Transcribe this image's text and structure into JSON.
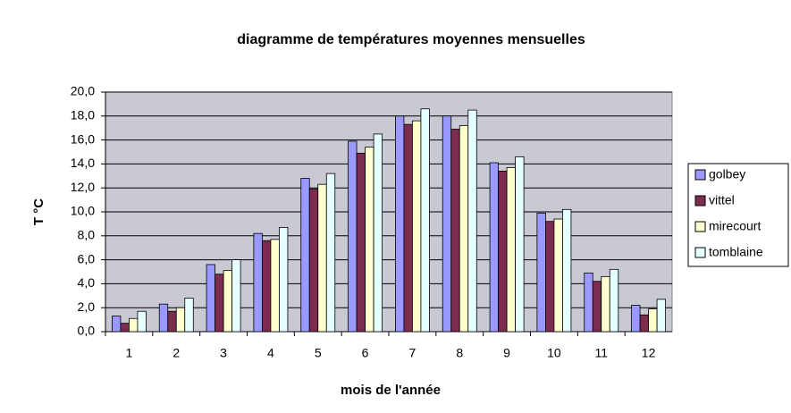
{
  "chart_data": {
    "type": "bar",
    "title": "diagramme de températures moyennes mensuelles",
    "x_label": "mois de l'année",
    "y_label": "T °C",
    "categories": [
      "1",
      "2",
      "3",
      "4",
      "5",
      "6",
      "7",
      "8",
      "9",
      "10",
      "11",
      "12"
    ],
    "series": [
      {
        "name": "golbey",
        "color": "#9999ff",
        "values": [
          1.3,
          2.3,
          5.6,
          8.2,
          12.8,
          15.9,
          18.0,
          18.0,
          14.1,
          9.9,
          4.9,
          2.2
        ]
      },
      {
        "name": "vittel",
        "color": "#7b2c4f",
        "values": [
          0.7,
          1.7,
          4.8,
          7.6,
          11.9,
          14.9,
          17.3,
          16.9,
          13.4,
          9.2,
          4.2,
          1.4
        ]
      },
      {
        "name": "mirecourt",
        "color": "#ffffd0",
        "values": [
          1.1,
          2.0,
          5.1,
          7.7,
          12.3,
          15.4,
          17.6,
          17.2,
          13.7,
          9.4,
          4.6,
          1.9
        ]
      },
      {
        "name": "tomblaine",
        "color": "#e6ffff",
        "values": [
          1.7,
          2.8,
          6.0,
          8.7,
          13.2,
          16.5,
          18.6,
          18.5,
          14.6,
          10.2,
          5.2,
          2.7
        ]
      }
    ],
    "ylim": [
      0,
      20
    ],
    "yticks": [
      {
        "value": 0,
        "label": "0,0"
      },
      {
        "value": 2,
        "label": "2,0"
      },
      {
        "value": 4,
        "label": "4,0"
      },
      {
        "value": 6,
        "label": "6,0"
      },
      {
        "value": 8,
        "label": "8,0"
      },
      {
        "value": 10,
        "label": "10,0"
      },
      {
        "value": 12,
        "label": "12,0"
      },
      {
        "value": 14,
        "label": "14,0"
      },
      {
        "value": 16,
        "label": "16,0"
      },
      {
        "value": 18,
        "label": "18,0"
      },
      {
        "value": 20,
        "label": "20,0"
      }
    ],
    "grid": true,
    "legend": "right"
  }
}
